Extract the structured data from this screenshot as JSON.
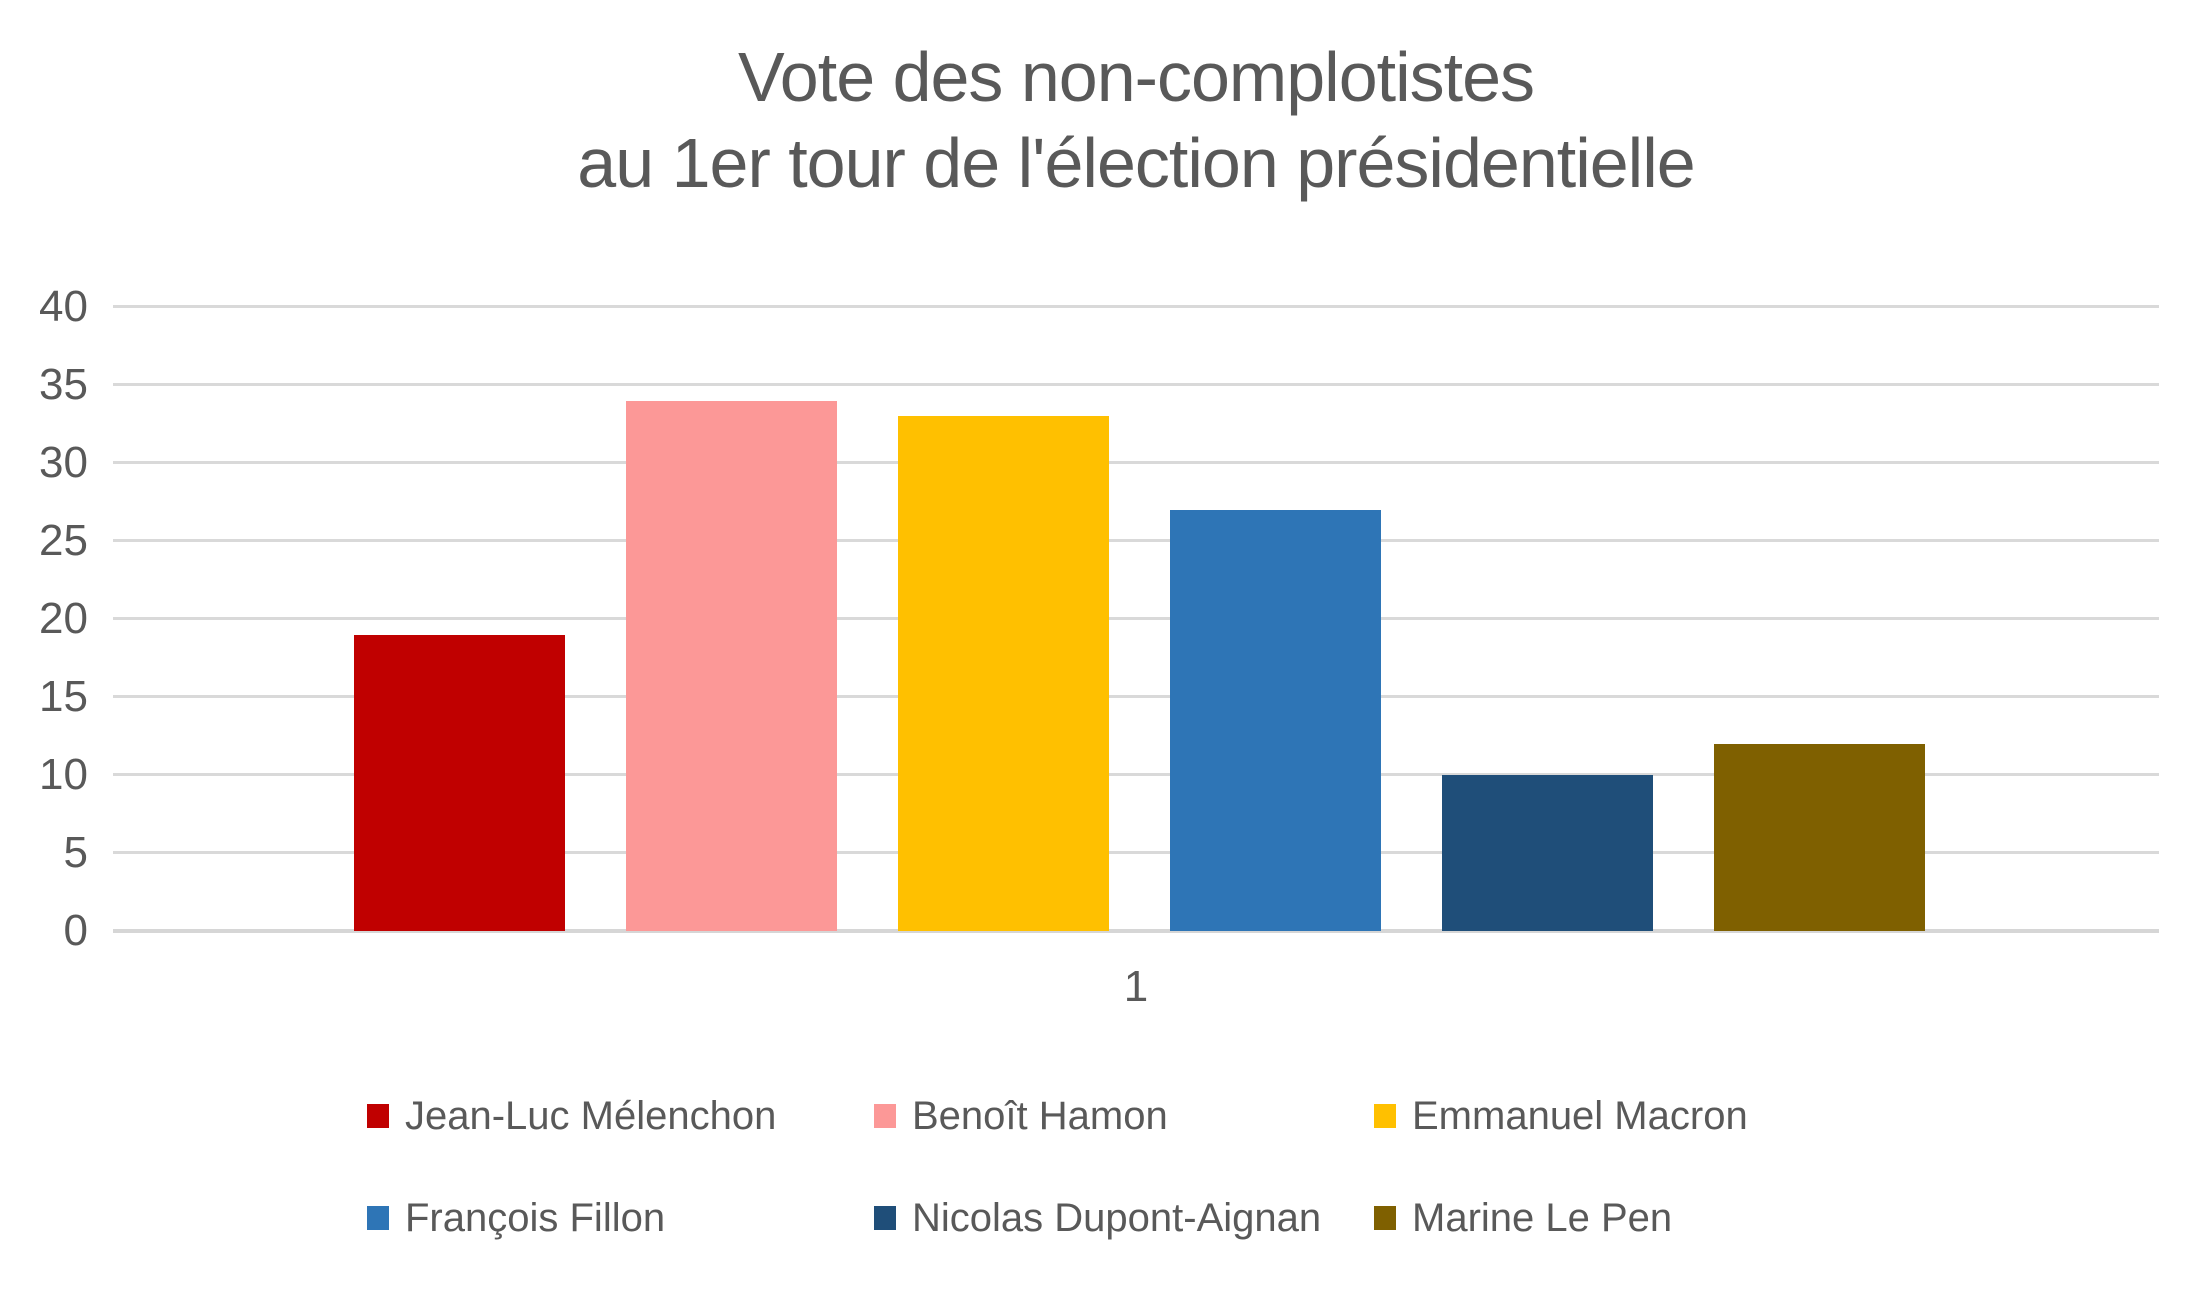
{
  "chart_data": {
    "type": "bar",
    "title": "Vote des non-complotistes au 1er tour de l'élection présidentielle",
    "title_lines": [
      "Vote des non-complotistes",
      "au 1er tour de l'élection présidentielle"
    ],
    "categories": [
      "1"
    ],
    "series": [
      {
        "name": "Jean-Luc Mélenchon",
        "color": "#C00000",
        "values": [
          19
        ]
      },
      {
        "name": "Benoît Hamon",
        "color": "#FC9897",
        "values": [
          34
        ]
      },
      {
        "name": "Emmanuel Macron",
        "color": "#FFC000",
        "values": [
          33
        ]
      },
      {
        "name": "François Fillon",
        "color": "#2E75B6",
        "values": [
          27
        ]
      },
      {
        "name": "Nicolas Dupont-Aignan",
        "color": "#1F4E79",
        "values": [
          10
        ]
      },
      {
        "name": "Marine Le Pen",
        "color": "#7F6000",
        "values": [
          12
        ]
      }
    ],
    "ylim": [
      0,
      40
    ],
    "yticks": [
      0,
      5,
      10,
      15,
      20,
      25,
      30,
      35,
      40
    ],
    "grid": true,
    "legend_position": "bottom",
    "xlabel": "",
    "ylabel": ""
  },
  "colors": {
    "text": "#595959",
    "gridline": "#D9D9D9",
    "background": "#FFFFFF"
  }
}
